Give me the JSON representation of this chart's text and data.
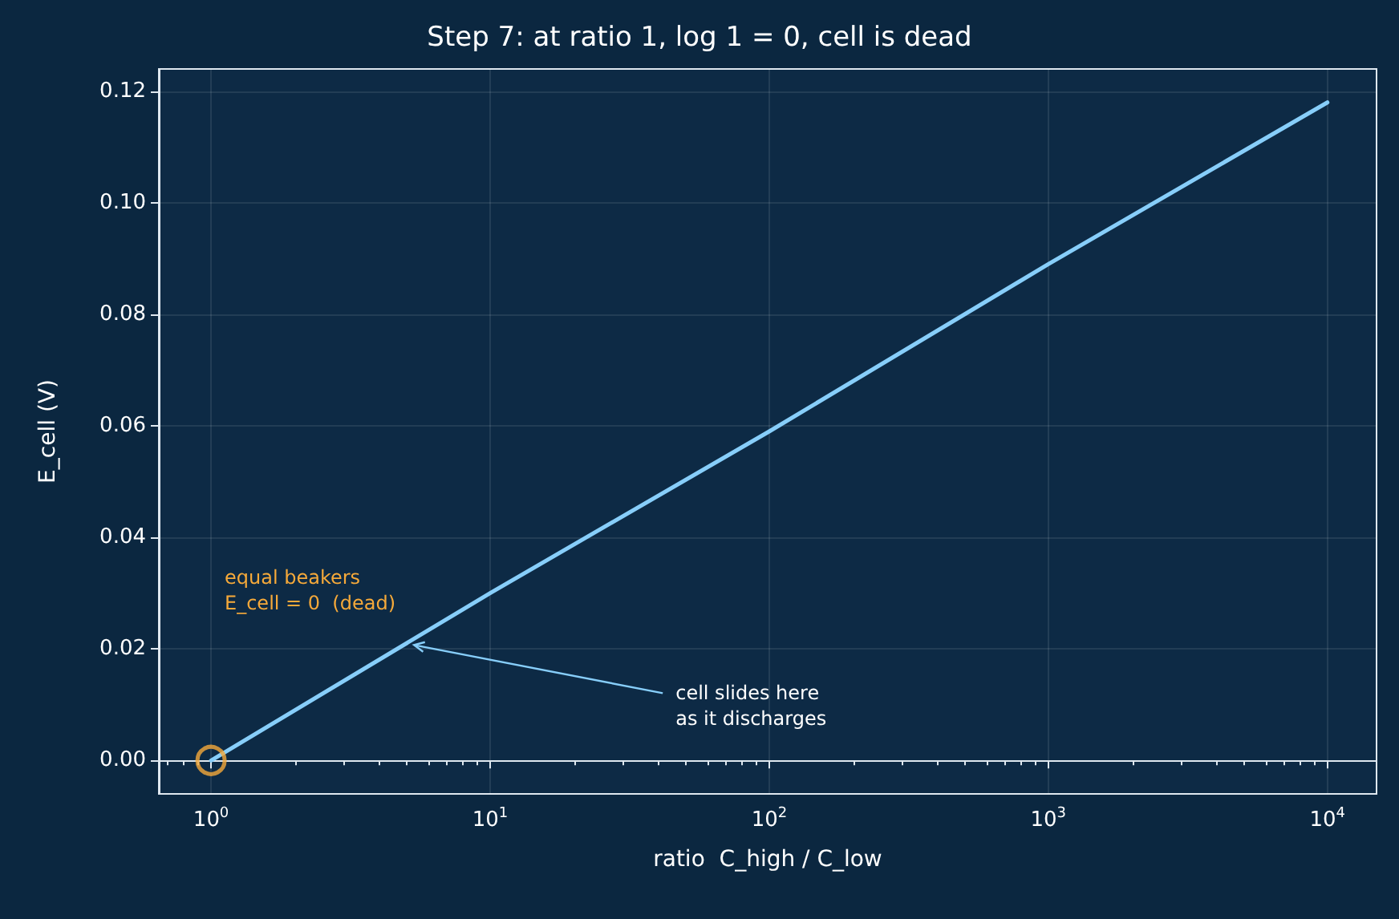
{
  "chart_data": {
    "type": "line",
    "title": "Step 7: at ratio 1, log 1 = 0, cell is dead",
    "xlabel": "ratio  C_high / C_low",
    "ylabel": "E_cell (V)",
    "series": [
      {
        "color": "#87cefa",
        "x": [
          1,
          10,
          100,
          1000,
          10000
        ],
        "values": [
          0,
          0.03,
          0.059,
          0.089,
          0.118
        ],
        "marker": "none"
      },
      {
        "type": "scatter",
        "color": "#f5a93a",
        "x": [
          1
        ],
        "values": [
          0
        ],
        "marker": "circle"
      }
    ],
    "xlim": [
      0.65,
      15000
    ],
    "xticks": [
      {
        "value": 1,
        "label": "10$^{0}$"
      },
      {
        "value": 10,
        "label": "10$^{1}$"
      },
      {
        "value": 100,
        "label": "10$^{2}$"
      },
      {
        "value": 1000,
        "label": "10$^{3}$"
      },
      {
        "value": 10000,
        "label": "10$^{4}$"
      }
    ],
    "ylim": [
      -0.006,
      0.124
    ],
    "yticks": [
      {
        "value": 0,
        "label": "0.00"
      },
      {
        "value": 0.02,
        "label": "0.02"
      },
      {
        "value": 0.04,
        "label": "0.04"
      },
      {
        "value": 0.06,
        "label": "0.06"
      },
      {
        "value": 0.08,
        "label": "0.08"
      },
      {
        "value": 0.1,
        "label": "0.10"
      },
      {
        "value": 0.12,
        "label": "0.12"
      }
    ],
    "log": "x",
    "grid": true,
    "annotations": [
      "equal beakers\nE_cell = 0  (dead)",
      {
        "text": "cell slides here\nas it discharges",
        "x": 5.2,
        "y": 0.0207
      }
    ]
  }
}
